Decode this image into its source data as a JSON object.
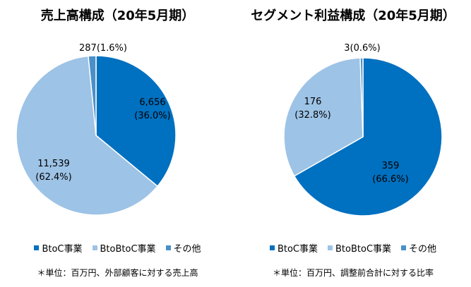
{
  "chart_data": [
    {
      "type": "pie",
      "title": "売上高構成（20年5月期）",
      "categories": [
        "BtoC事業",
        "BtoBtoC事業",
        "その他"
      ],
      "values": [
        6656,
        11539,
        287
      ],
      "value_labels": [
        "6,656",
        "11,539",
        "287"
      ],
      "percent_labels": [
        "(36.0%)",
        "(62.4%)",
        "(1.6%)"
      ],
      "legend": "bottom",
      "note": "＊単位：百万円、外部顧客に対する売上高"
    },
    {
      "type": "pie",
      "title": "セグメント利益構成（20年5月期）",
      "categories": [
        "BtoC事業",
        "BtoBtoC事業",
        "その他"
      ],
      "values": [
        359,
        176,
        3
      ],
      "value_labels": [
        "359",
        "176",
        "3"
      ],
      "percent_labels": [
        "(66.6%)",
        "(32.8%)",
        "(0.6%)"
      ],
      "legend": "bottom",
      "note": "＊単位：百万円、調整前合計に対する比率"
    }
  ],
  "colors": {
    "BtoC事業": "#0070c0",
    "BtoBtoC事業": "#9dc3e6",
    "その他": "#4a90c8"
  }
}
